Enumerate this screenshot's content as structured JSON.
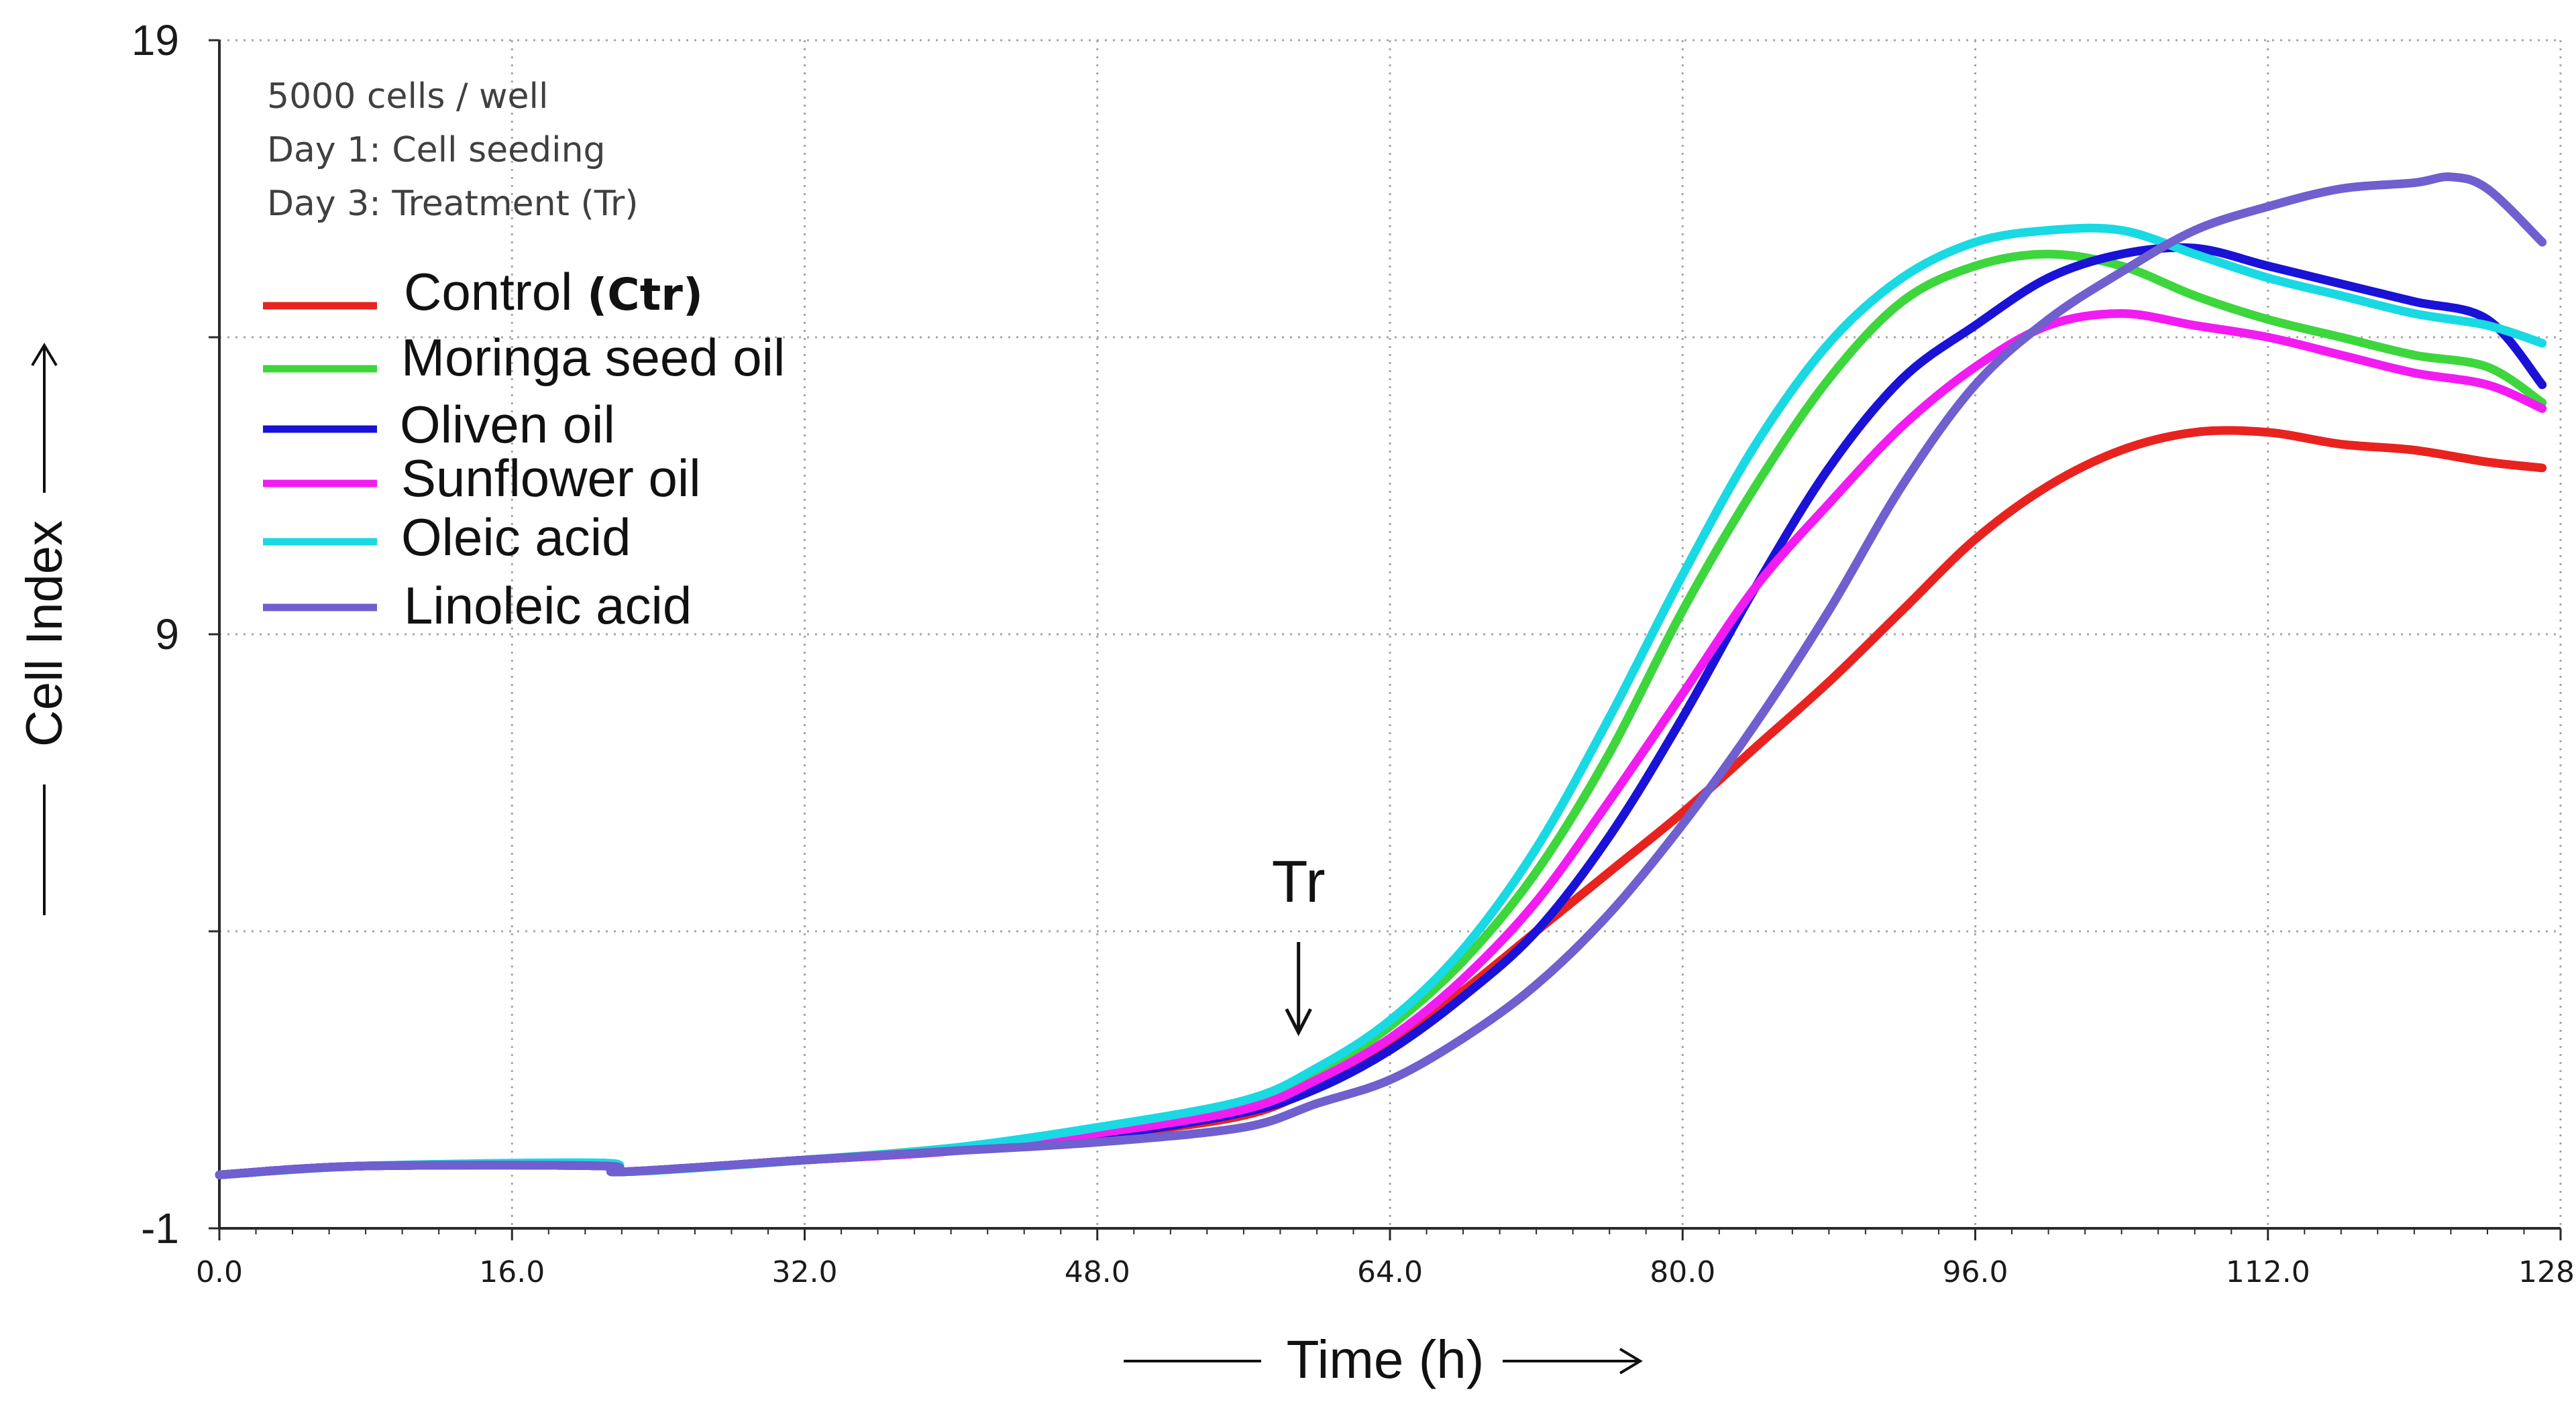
{
  "chart_data": {
    "type": "line",
    "title": "",
    "xlabel": "Time (h)",
    "ylabel": "Cell Index",
    "xlim": [
      0,
      128
    ],
    "ylim": [
      -1,
      19
    ],
    "x_tick_labels": [
      "0.0",
      "16.0",
      "32.0",
      "48.0",
      "64.0",
      "80.0",
      "96.0",
      "112.0",
      "128.0"
    ],
    "x_ticks": [
      0,
      16,
      32,
      48,
      64,
      80,
      96,
      112,
      128
    ],
    "y_tick_labels": [
      "19",
      "9",
      "-1"
    ],
    "y_ticks_labeled": [
      19,
      9,
      -1
    ],
    "y_gridlines": [
      19,
      14,
      9,
      4,
      -1
    ],
    "grid": true,
    "legend_position": "top-left",
    "notes": [
      "5000 cells / well",
      "Day 1: Cell seeding",
      "Day 3: Treatment (Tr)"
    ],
    "annotation": {
      "text": "Tr",
      "x": 59,
      "arrow": "down"
    },
    "series": [
      {
        "name": "Control",
        "name_suffix": "(Ctr)",
        "color": "#e8231f",
        "x": [
          0,
          8,
          21,
          22,
          32,
          40,
          48,
          56,
          60,
          64,
          68,
          72,
          76,
          80,
          84,
          88,
          92,
          96,
          100,
          104,
          108,
          112,
          116,
          120,
          124,
          127
        ],
        "y": [
          -0.1,
          0.05,
          0.05,
          -0.05,
          0.15,
          0.3,
          0.55,
          0.9,
          1.4,
          2.1,
          3.0,
          4.0,
          5.0,
          6.0,
          7.1,
          8.2,
          9.4,
          10.6,
          11.5,
          12.1,
          12.4,
          12.4,
          12.2,
          12.1,
          11.9,
          11.8
        ]
      },
      {
        "name": "Moringa seed oil",
        "color": "#3dd63d",
        "x": [
          0,
          8,
          21,
          22,
          32,
          40,
          48,
          56,
          60,
          64,
          68,
          72,
          76,
          80,
          84,
          88,
          92,
          96,
          100,
          104,
          108,
          112,
          116,
          120,
          124,
          127
        ],
        "y": [
          -0.1,
          0.05,
          0.05,
          -0.05,
          0.15,
          0.35,
          0.65,
          1.1,
          1.6,
          2.4,
          3.5,
          5.0,
          7.0,
          9.4,
          11.5,
          13.3,
          14.6,
          15.2,
          15.4,
          15.2,
          14.7,
          14.3,
          14.0,
          13.7,
          13.5,
          12.9
        ]
      },
      {
        "name": "Oliven oil",
        "color": "#1a12d6",
        "x": [
          0,
          8,
          21,
          22,
          32,
          40,
          48,
          56,
          60,
          64,
          68,
          72,
          76,
          80,
          84,
          88,
          92,
          96,
          100,
          104,
          108,
          112,
          116,
          120,
          124,
          127
        ],
        "y": [
          -0.1,
          0.05,
          0.05,
          -0.05,
          0.15,
          0.3,
          0.55,
          0.95,
          1.35,
          2.0,
          2.9,
          4.0,
          5.6,
          7.6,
          9.8,
          11.8,
          13.3,
          14.2,
          15.0,
          15.4,
          15.5,
          15.2,
          14.9,
          14.6,
          14.3,
          13.2
        ]
      },
      {
        "name": "Sunflower oil",
        "color": "#f21cf2",
        "x": [
          0,
          8,
          21,
          22,
          32,
          40,
          48,
          56,
          60,
          64,
          68,
          72,
          76,
          80,
          84,
          88,
          92,
          96,
          100,
          104,
          108,
          112,
          116,
          120,
          124,
          127
        ],
        "y": [
          -0.1,
          0.05,
          0.05,
          -0.05,
          0.15,
          0.3,
          0.6,
          1.0,
          1.5,
          2.2,
          3.2,
          4.5,
          6.2,
          8.0,
          9.8,
          11.2,
          12.5,
          13.5,
          14.2,
          14.4,
          14.2,
          14.0,
          13.7,
          13.4,
          13.2,
          12.8
        ]
      },
      {
        "name": "Oleic acid",
        "color": "#19d9e3",
        "x": [
          0,
          8,
          21,
          22,
          32,
          40,
          48,
          56,
          60,
          64,
          68,
          72,
          76,
          80,
          84,
          88,
          92,
          96,
          100,
          104,
          108,
          112,
          116,
          120,
          124,
          127
        ],
        "y": [
          -0.1,
          0.05,
          0.1,
          -0.05,
          0.15,
          0.35,
          0.7,
          1.15,
          1.7,
          2.5,
          3.7,
          5.4,
          7.6,
          10.0,
          12.2,
          13.9,
          15.0,
          15.6,
          15.8,
          15.8,
          15.4,
          15.0,
          14.7,
          14.4,
          14.2,
          13.9
        ]
      },
      {
        "name": "Linoleic acid",
        "color": "#6f5fcf",
        "x": [
          0,
          8,
          21,
          22,
          32,
          40,
          48,
          56,
          60,
          64,
          68,
          72,
          76,
          80,
          84,
          88,
          92,
          96,
          100,
          104,
          108,
          112,
          116,
          120,
          122,
          124,
          127
        ],
        "y": [
          -0.1,
          0.05,
          0.05,
          -0.05,
          0.15,
          0.3,
          0.45,
          0.7,
          1.1,
          1.5,
          2.2,
          3.1,
          4.3,
          5.8,
          7.5,
          9.4,
          11.5,
          13.2,
          14.3,
          15.1,
          15.8,
          16.2,
          16.5,
          16.6,
          16.7,
          16.5,
          15.6
        ]
      }
    ]
  }
}
